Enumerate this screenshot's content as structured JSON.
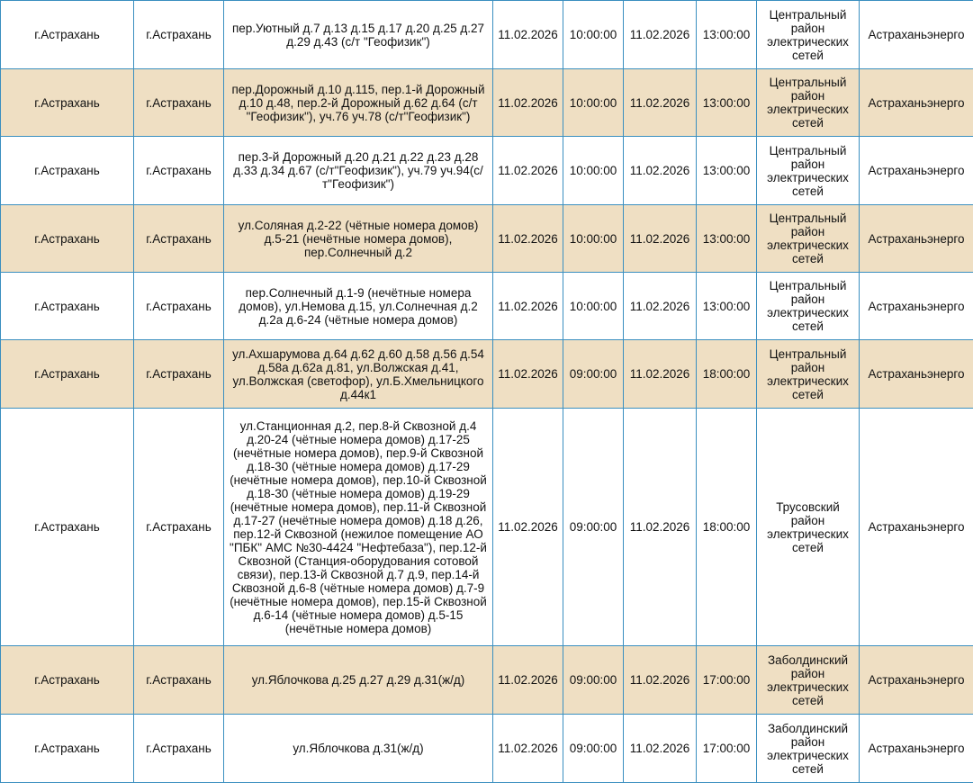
{
  "colors": {
    "border": "#3a8fc0",
    "alt_row": "#efdfc3"
  },
  "rows": [
    {
      "city": "г.Астрахань",
      "locality": "г.Астрахань",
      "address": "пер.Уютный д.7 д.13 д.15 д.17 д.20 д.25 д.27 д.29 д.43 (с/т \"Геофизик\")",
      "start_date": "11.02.2026",
      "start_time": "10:00:00",
      "end_date": "11.02.2026",
      "end_time": "13:00:00",
      "district": "Центральный район электрических сетей",
      "org": "Астраханьэнерго"
    },
    {
      "city": "г.Астрахань",
      "locality": "г.Астрахань",
      "address": "пер.Дорожный д.10 д.115, пер.1-й Дорожный д.10 д.48, пер.2-й Дорожный д.62 д.64 (с/т \"Геофизик\"), уч.76 уч.78 (с/т\"Геофизик\")",
      "start_date": "11.02.2026",
      "start_time": "10:00:00",
      "end_date": "11.02.2026",
      "end_time": "13:00:00",
      "district": "Центральный район электрических сетей",
      "org": "Астраханьэнерго"
    },
    {
      "city": "г.Астрахань",
      "locality": "г.Астрахань",
      "address": "пер.3-й Дорожный д.20 д.21 д.22 д.23 д.28 д.33 д.34 д.67 (с/т\"Геофизик\"), уч.79 уч.94(с/т\"Геофизик\")",
      "start_date": "11.02.2026",
      "start_time": "10:00:00",
      "end_date": "11.02.2026",
      "end_time": "13:00:00",
      "district": "Центральный район электрических сетей",
      "org": "Астраханьэнерго"
    },
    {
      "city": "г.Астрахань",
      "locality": "г.Астрахань",
      "address": "ул.Соляная д.2-22 (чётные номера домов) д.5-21 (нечётные номера домов), пер.Солнечный д.2",
      "start_date": "11.02.2026",
      "start_time": "10:00:00",
      "end_date": "11.02.2026",
      "end_time": "13:00:00",
      "district": "Центральный район электрических сетей",
      "org": "Астраханьэнерго"
    },
    {
      "city": "г.Астрахань",
      "locality": "г.Астрахань",
      "address": "пер.Солнечный д.1-9 (нечётные номера домов), ул.Немова д.15, ул.Солнечная д.2 д.2а д.6-24 (чётные номера домов)",
      "start_date": "11.02.2026",
      "start_time": "10:00:00",
      "end_date": "11.02.2026",
      "end_time": "13:00:00",
      "district": "Центральный район электрических сетей",
      "org": "Астраханьэнерго"
    },
    {
      "city": "г.Астрахань",
      "locality": "г.Астрахань",
      "address": "ул.Ахшарумова д.64 д.62 д.60 д.58 д.56 д.54 д.58а д.62а д.81, ул.Волжская д.41, ул.Волжская (светофор), ул.Б.Хмельницкого д.44к1",
      "start_date": "11.02.2026",
      "start_time": "09:00:00",
      "end_date": "11.02.2026",
      "end_time": "18:00:00",
      "district": "Центральный район электрических сетей",
      "org": "Астраханьэнерго"
    },
    {
      "city": "г.Астрахань",
      "locality": "г.Астрахань",
      "address": "ул.Станционная д.2, пер.8-й Сквозной д.4 д.20-24 (чётные номера домов) д.17-25 (нечётные номера домов), пер.9-й Сквозной д.18-30 (чётные номера домов) д.17-29 (нечётные номера домов), пер.10-й Сквозной д.18-30 (чётные номера домов) д.19-29 (нечётные номера домов), пер.11-й Сквозной д.17-27 (нечётные номера домов) д.18 д.26, пер.12-й Сквозной (нежилое помещение АО \"ПБК\" АМС №30-4424 \"Нефтебаза\"), пер.12-й Сквозной (Станция-оборудования сотовой связи), пер.13-й Сквозной д.7 д.9, пер.14-й Сквозной д.6-8 (чётные номера домов) д.7-9 (нечётные номера домов), пер.15-й Сквозной д.6-14 (чётные номера домов) д.5-15 (нечётные номера домов)",
      "start_date": "11.02.2026",
      "start_time": "09:00:00",
      "end_date": "11.02.2026",
      "end_time": "18:00:00",
      "district": "Трусовский район электрических сетей",
      "org": "Астраханьэнерго"
    },
    {
      "city": "г.Астрахань",
      "locality": "г.Астрахань",
      "address": "ул.Яблочкова д.25 д.27 д.29 д.31(ж/д)",
      "start_date": "11.02.2026",
      "start_time": "09:00:00",
      "end_date": "11.02.2026",
      "end_time": "17:00:00",
      "district": "Заболдинский район электрических сетей",
      "org": "Астраханьэнерго"
    },
    {
      "city": "г.Астрахань",
      "locality": "г.Астрахань",
      "address": "ул.Яблочкова д.31(ж/д)",
      "start_date": "11.02.2026",
      "start_time": "09:00:00",
      "end_date": "11.02.2026",
      "end_time": "17:00:00",
      "district": "Заболдинский район электрических сетей",
      "org": "Астраханьэнерго"
    }
  ]
}
